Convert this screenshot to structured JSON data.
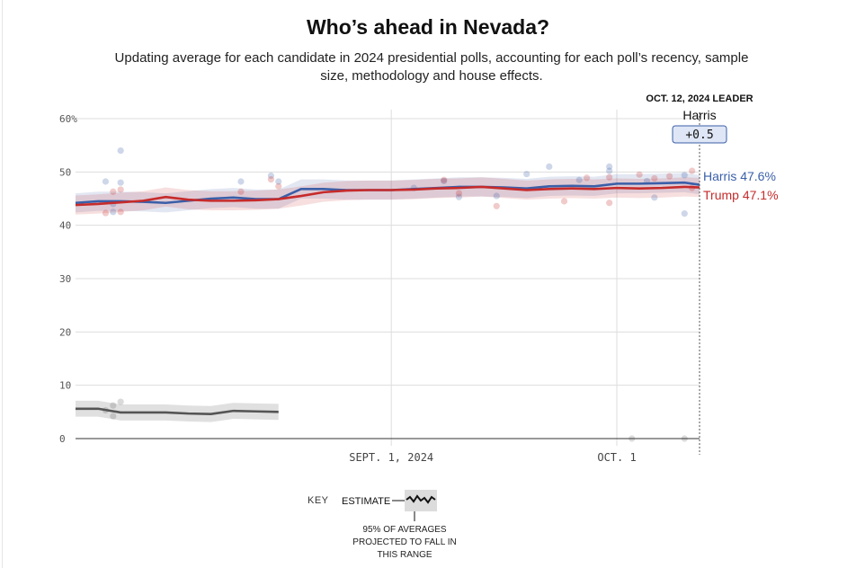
{
  "title": "Who’s ahead in Nevada?",
  "subtitle": "Updating average for each candidate in 2024 presidential polls, accounting for each poll’s recency, sample size, methodology and house effects.",
  "leader": {
    "heading": "OCT. 12, 2024 LEADER",
    "name": "Harris",
    "margin": "+0.5"
  },
  "key": {
    "label": "KEY",
    "estimate": "ESTIMATE",
    "note": "95% OF AVERAGES PROJECTED TO FALL IN THIS RANGE"
  },
  "colors": {
    "harris": "#3a5fa8",
    "trump": "#c62b2b",
    "other": "#555555",
    "grid": "#dddddd"
  },
  "chart_data": {
    "type": "line",
    "title": "Who’s ahead in Nevada?",
    "x_domain": [
      "2024-07-21",
      "2024-10-12"
    ],
    "ylim": [
      0,
      60
    ],
    "y_ticks": [
      0,
      10,
      20,
      30,
      40,
      50,
      60
    ],
    "y_tick_labels": [
      "0",
      "10",
      "20",
      "30",
      "40",
      "50",
      "60%"
    ],
    "x_ticks": [
      {
        "date": "2024-09-01",
        "label": "SEPT. 1, 2024"
      },
      {
        "date": "2024-10-01",
        "label": "OCT. 1"
      }
    ],
    "grid": true,
    "series": [
      {
        "name": "Harris",
        "label": "Harris 47.6%",
        "color": "#3a5fa8",
        "x": [
          "2024-07-21",
          "2024-07-24",
          "2024-07-27",
          "2024-07-30",
          "2024-08-02",
          "2024-08-05",
          "2024-08-08",
          "2024-08-11",
          "2024-08-14",
          "2024-08-17",
          "2024-08-20",
          "2024-08-23",
          "2024-08-26",
          "2024-08-29",
          "2024-09-01",
          "2024-09-04",
          "2024-09-07",
          "2024-09-10",
          "2024-09-13",
          "2024-09-16",
          "2024-09-19",
          "2024-09-22",
          "2024-09-25",
          "2024-09-28",
          "2024-10-01",
          "2024-10-04",
          "2024-10-07",
          "2024-10-10",
          "2024-10-12"
        ],
        "values": [
          44.2,
          44.5,
          44.5,
          44.4,
          44.2,
          44.6,
          45.0,
          45.2,
          44.9,
          44.9,
          46.8,
          46.8,
          46.6,
          46.6,
          46.6,
          46.8,
          47.0,
          47.2,
          47.2,
          47.1,
          46.9,
          47.3,
          47.4,
          47.3,
          47.8,
          47.8,
          47.9,
          48.0,
          47.6
        ],
        "band": 1.8
      },
      {
        "name": "Trump",
        "label": "Trump 47.1%",
        "color": "#c62b2b",
        "x": [
          "2024-07-21",
          "2024-07-24",
          "2024-07-27",
          "2024-07-30",
          "2024-08-02",
          "2024-08-05",
          "2024-08-08",
          "2024-08-11",
          "2024-08-14",
          "2024-08-17",
          "2024-08-20",
          "2024-08-23",
          "2024-08-26",
          "2024-08-29",
          "2024-09-01",
          "2024-09-04",
          "2024-09-07",
          "2024-09-10",
          "2024-09-13",
          "2024-09-16",
          "2024-09-19",
          "2024-09-22",
          "2024-09-25",
          "2024-09-28",
          "2024-10-01",
          "2024-10-04",
          "2024-10-07",
          "2024-10-10",
          "2024-10-12"
        ],
        "values": [
          43.8,
          44.0,
          44.3,
          44.6,
          45.3,
          44.8,
          44.6,
          44.6,
          44.7,
          44.9,
          45.5,
          46.2,
          46.5,
          46.6,
          46.6,
          46.7,
          46.9,
          47.0,
          47.2,
          46.9,
          46.6,
          46.8,
          46.9,
          46.8,
          47.0,
          46.9,
          47.0,
          47.2,
          47.1
        ],
        "band": 1.8
      },
      {
        "name": "Other",
        "color": "#555555",
        "x": [
          "2024-07-21",
          "2024-07-24",
          "2024-07-27",
          "2024-07-30",
          "2024-08-02",
          "2024-08-05",
          "2024-08-08",
          "2024-08-11",
          "2024-08-14",
          "2024-08-17"
        ],
        "values": [
          5.6,
          5.6,
          4.9,
          4.9,
          4.9,
          4.7,
          4.6,
          5.2,
          5.1,
          5.0
        ],
        "band": 1.5
      }
    ],
    "polls": {
      "harris": [
        [
          "2024-07-25",
          48.2
        ],
        [
          "2024-07-27",
          54.0
        ],
        [
          "2024-07-27",
          48.0
        ],
        [
          "2024-07-26",
          42.5
        ],
        [
          "2024-07-26",
          44.0
        ],
        [
          "2024-08-12",
          48.2
        ],
        [
          "2024-08-16",
          49.3
        ],
        [
          "2024-08-17",
          48.2
        ],
        [
          "2024-09-04",
          47.0
        ],
        [
          "2024-09-08",
          48.3
        ],
        [
          "2024-09-10",
          45.3
        ],
        [
          "2024-09-15",
          45.5
        ],
        [
          "2024-09-19",
          49.6
        ],
        [
          "2024-09-22",
          51.0
        ],
        [
          "2024-09-26",
          48.5
        ],
        [
          "2024-09-30",
          51.0
        ],
        [
          "2024-09-30",
          50.2
        ],
        [
          "2024-10-05",
          48.3
        ],
        [
          "2024-10-06",
          45.2
        ],
        [
          "2024-10-10",
          49.4
        ],
        [
          "2024-10-10",
          42.2
        ]
      ],
      "trump": [
        [
          "2024-07-25",
          42.3
        ],
        [
          "2024-07-26",
          46.3
        ],
        [
          "2024-07-27",
          46.7
        ],
        [
          "2024-07-27",
          42.5
        ],
        [
          "2024-08-12",
          46.3
        ],
        [
          "2024-08-16",
          48.6
        ],
        [
          "2024-08-17",
          47.3
        ],
        [
          "2024-09-08",
          48.5
        ],
        [
          "2024-09-10",
          46.0
        ],
        [
          "2024-09-15",
          43.6
        ],
        [
          "2024-09-24",
          44.5
        ],
        [
          "2024-09-27",
          48.9
        ],
        [
          "2024-09-30",
          44.2
        ],
        [
          "2024-09-30",
          49.0
        ],
        [
          "2024-10-04",
          49.5
        ],
        [
          "2024-10-06",
          48.8
        ],
        [
          "2024-10-08",
          49.2
        ],
        [
          "2024-10-11",
          50.2
        ],
        [
          "2024-10-11",
          47.0
        ]
      ],
      "other": [
        [
          "2024-07-25",
          5.3
        ],
        [
          "2024-07-26",
          6.2
        ],
        [
          "2024-07-27",
          6.9
        ],
        [
          "2024-07-26",
          4.2
        ],
        [
          "2024-10-03",
          0.0
        ],
        [
          "2024-10-10",
          0.0
        ]
      ]
    }
  }
}
